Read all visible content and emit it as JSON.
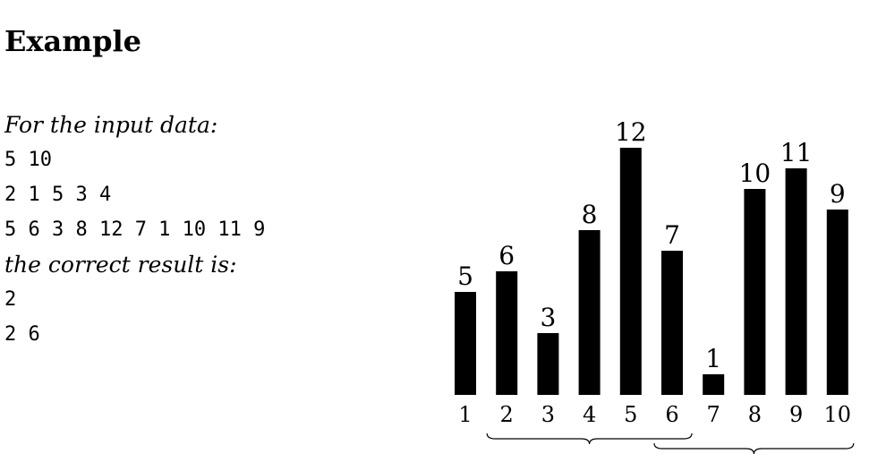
{
  "section": {
    "title": "Example"
  },
  "example": {
    "input_intro": "For the input data:",
    "input_lines": [
      "5 10",
      "2 1 5 3 4",
      "5 6 3 8 12 7 1 10 11 9"
    ],
    "result_intro": "the correct result is:",
    "result_lines": [
      "2",
      "2 6"
    ]
  },
  "chart_data": {
    "type": "bar",
    "categories": [
      "1",
      "2",
      "3",
      "4",
      "5",
      "6",
      "7",
      "8",
      "9",
      "10"
    ],
    "values": [
      5,
      6,
      3,
      8,
      12,
      7,
      1,
      10,
      11,
      9
    ],
    "data_labels": [
      "5",
      "6",
      "3",
      "8",
      "12",
      "7",
      "1",
      "10",
      "11",
      "9"
    ],
    "title": "",
    "xlabel": "",
    "ylabel": "",
    "ylim": [
      0,
      12
    ],
    "bar_color": "#000000",
    "grid": false,
    "legend": "none",
    "annotations": [
      {
        "type": "brace",
        "from_category": "2",
        "to_category": "6"
      },
      {
        "type": "brace",
        "from_category": "6",
        "to_category": "10"
      }
    ]
  }
}
